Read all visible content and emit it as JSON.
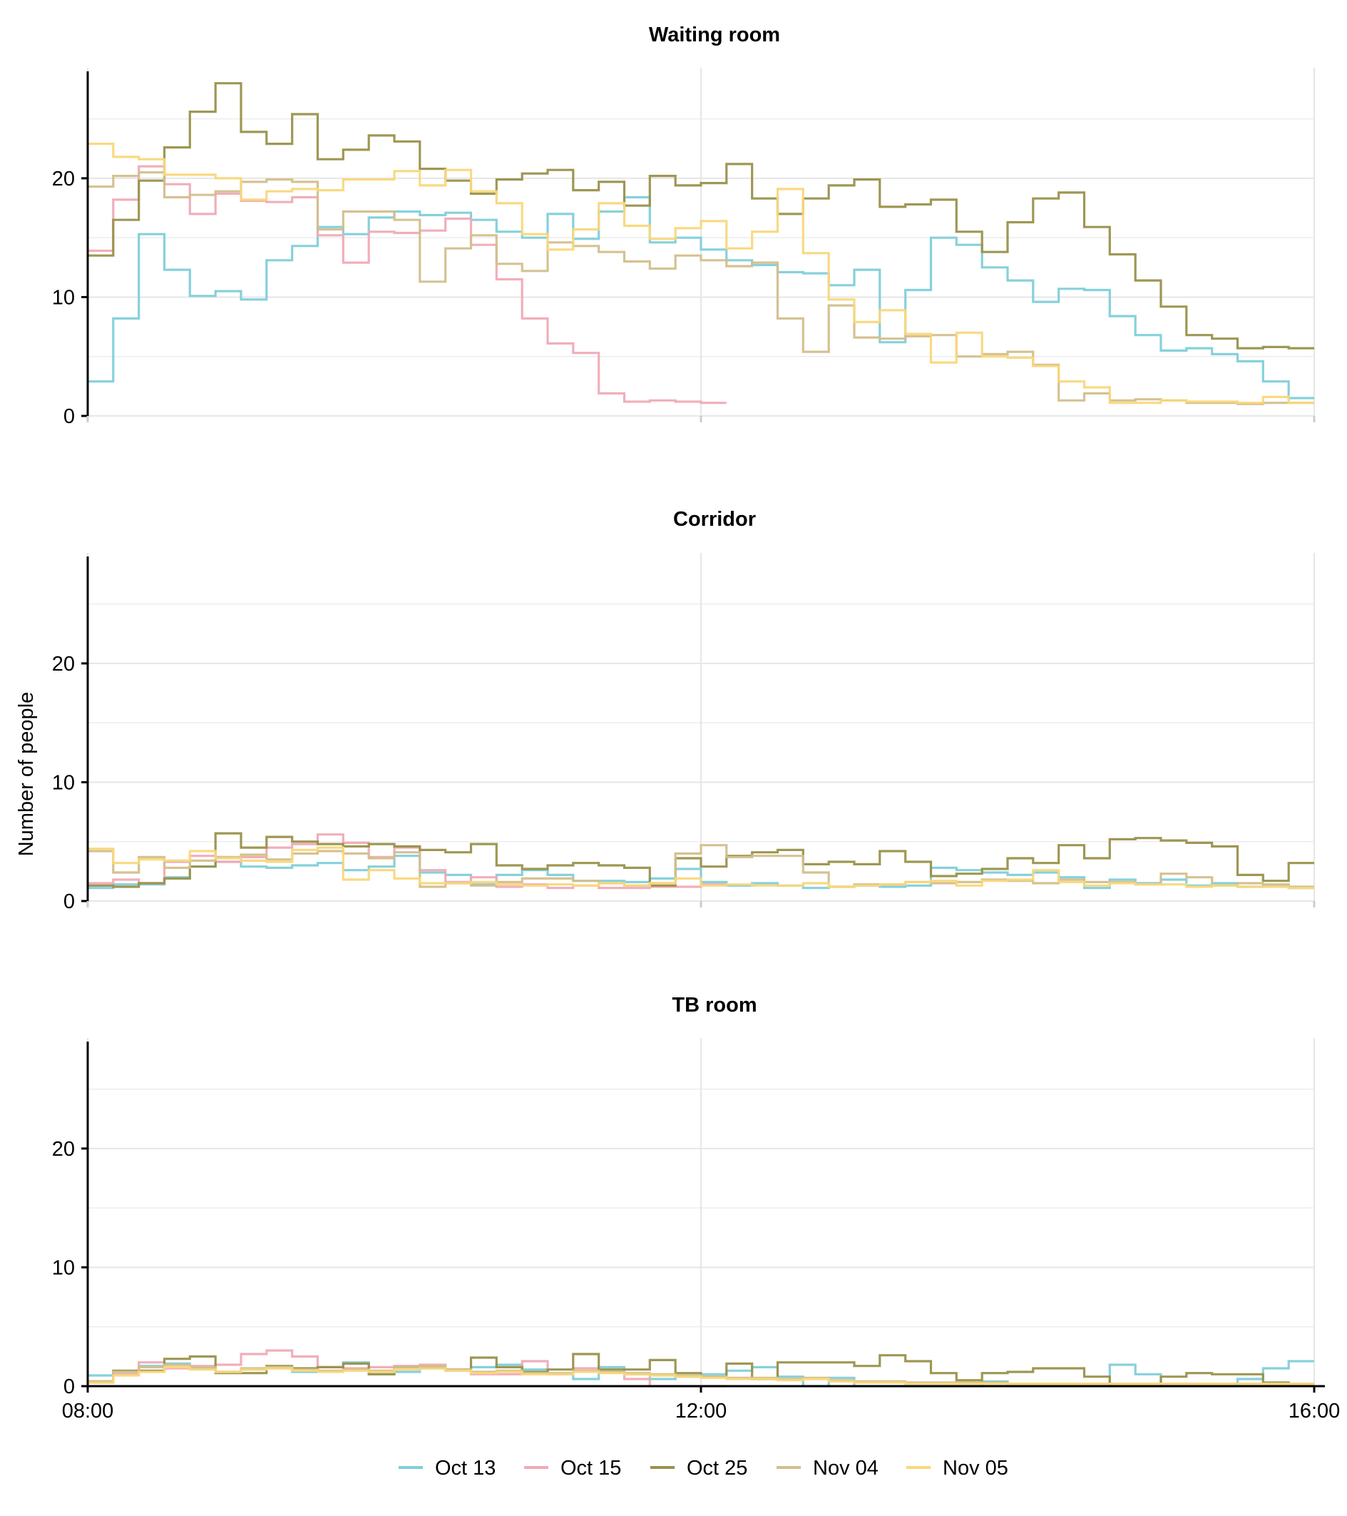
{
  "chart_data": {
    "type": "line",
    "step": true,
    "ylabel": "Number of people",
    "ylim": [
      0,
      29
    ],
    "yticks": [
      0,
      10,
      20
    ],
    "xticks": [
      "08:00",
      "12:00",
      "16:00"
    ],
    "xlim": [
      "08:00",
      "16:00"
    ],
    "x_step_minutes": 10,
    "grid": true,
    "legend": {
      "position": "bottom",
      "entries": [
        "Oct 13",
        "Oct 15",
        "Oct 25",
        "Nov 04",
        "Nov 05"
      ]
    },
    "colors": {
      "Oct 13": "#7fcfd9",
      "Oct 15": "#f0aab6",
      "Oct 25": "#99914a",
      "Nov 04": "#d3bf8c",
      "Nov 05": "#f9d77a"
    },
    "panels": [
      {
        "title": "Waiting room",
        "series": [
          {
            "name": "Oct 13",
            "values": [
              2.9,
              8.2,
              15.3,
              12.3,
              10.1,
              10.5,
              9.8,
              13.1,
              14.3,
              15.9,
              15.3,
              16.7,
              17.2,
              16.9,
              17.1,
              16.5,
              15.5,
              15.0,
              17.0,
              14.9,
              17.2,
              18.4,
              14.6,
              15.0,
              14.0,
              13.1,
              12.7,
              12.1,
              12.0,
              11.0,
              12.3,
              6.2,
              10.6,
              15.0,
              14.4,
              12.5,
              11.4,
              9.6,
              10.7,
              10.6,
              8.4,
              6.8,
              5.5,
              5.7,
              5.2,
              4.6,
              2.9,
              1.5
            ]
          },
          {
            "name": "Oct 15",
            "values": [
              13.9,
              18.2,
              21.0,
              19.5,
              17.0,
              18.7,
              18.1,
              18.0,
              18.4,
              15.2,
              12.9,
              15.5,
              15.4,
              15.6,
              16.6,
              14.4,
              11.5,
              8.2,
              6.1,
              5.3,
              1.9,
              1.2,
              1.3,
              1.2,
              1.1
            ]
          },
          {
            "name": "Oct 25",
            "values": [
              13.5,
              16.5,
              19.8,
              22.6,
              25.6,
              28.0,
              23.9,
              22.9,
              25.4,
              21.6,
              22.4,
              23.6,
              23.1,
              20.8,
              19.8,
              18.7,
              19.9,
              20.4,
              20.7,
              19.0,
              19.7,
              17.7,
              20.2,
              19.4,
              19.6,
              21.2,
              18.3,
              17.0,
              18.3,
              19.4,
              19.9,
              17.6,
              17.8,
              18.2,
              15.5,
              13.8,
              16.3,
              18.3,
              18.8,
              15.9,
              13.6,
              11.4,
              9.2,
              6.8,
              6.5,
              5.7,
              5.8,
              5.7
            ]
          },
          {
            "name": "Nov 04",
            "values": [
              19.3,
              20.2,
              20.5,
              18.4,
              18.6,
              18.9,
              19.7,
              19.9,
              19.7,
              15.7,
              17.2,
              17.2,
              16.5,
              11.3,
              14.1,
              15.2,
              12.8,
              12.2,
              14.6,
              14.3,
              13.8,
              13.0,
              12.4,
              13.5,
              13.1,
              12.6,
              12.9,
              8.2,
              5.4,
              9.3,
              6.6,
              6.5,
              6.7,
              6.8,
              5.0,
              5.2,
              5.4,
              4.3,
              1.3,
              1.9,
              1.3,
              1.4,
              1.3,
              1.1,
              1.1,
              1.0,
              1.1,
              1.1
            ]
          },
          {
            "name": "Nov 05",
            "values": [
              22.9,
              21.8,
              21.6,
              20.3,
              20.3,
              20.0,
              18.2,
              18.9,
              19.1,
              19.0,
              19.9,
              19.9,
              20.6,
              19.4,
              20.7,
              18.9,
              17.9,
              15.3,
              14.0,
              15.7,
              17.9,
              16.0,
              14.9,
              15.8,
              16.4,
              14.1,
              15.5,
              19.1,
              13.7,
              9.8,
              7.9,
              8.9,
              6.9,
              4.5,
              7.0,
              5.0,
              4.9,
              4.2,
              2.9,
              2.4,
              1.1,
              1.1,
              1.3,
              1.2,
              1.2,
              1.1,
              1.6,
              1.1
            ]
          }
        ]
      },
      {
        "title": "Corridor",
        "series": [
          {
            "name": "Oct 13",
            "values": [
              1.1,
              1.4,
              1.4,
              2.0,
              2.9,
              3.3,
              2.9,
              2.8,
              3.0,
              3.2,
              2.6,
              2.9,
              3.8,
              2.4,
              2.2,
              1.4,
              2.2,
              2.6,
              2.2,
              1.7,
              1.7,
              1.6,
              1.9,
              2.7,
              1.6,
              1.3,
              1.5,
              1.3,
              1.1,
              1.2,
              1.3,
              1.2,
              1.3,
              2.8,
              2.6,
              2.4,
              2.2,
              2.4,
              2.0,
              1.1,
              1.8,
              1.5,
              1.8,
              1.3,
              1.5,
              1.2,
              1.3,
              1.1
            ]
          },
          {
            "name": "Oct 15",
            "values": [
              1.5,
              1.8,
              1.5,
              3.3,
              3.8,
              3.3,
              3.7,
              4.5,
              4.8,
              5.6,
              4.9,
              3.7,
              4.5,
              2.6,
              1.6,
              2.0,
              1.2,
              1.4,
              1.1,
              1.3,
              1.1,
              1.1,
              1.2,
              1.2,
              1.4
            ]
          },
          {
            "name": "Oct 25",
            "values": [
              1.3,
              1.2,
              1.5,
              1.9,
              2.9,
              5.7,
              4.5,
              5.4,
              5.0,
              4.8,
              4.6,
              4.8,
              4.6,
              4.3,
              4.1,
              4.8,
              3.0,
              2.7,
              3.0,
              3.2,
              3.0,
              2.8,
              1.3,
              3.6,
              2.9,
              3.8,
              4.1,
              4.3,
              3.1,
              3.3,
              3.1,
              4.2,
              3.3,
              2.1,
              2.3,
              2.7,
              3.6,
              3.2,
              4.7,
              3.6,
              5.2,
              5.3,
              5.1,
              4.9,
              4.6,
              2.2,
              1.7,
              3.2
            ]
          },
          {
            "name": "Nov 04",
            "values": [
              4.2,
              2.4,
              3.7,
              2.8,
              3.4,
              3.7,
              3.9,
              3.5,
              4.0,
              4.2,
              4.0,
              3.6,
              4.1,
              1.2,
              1.5,
              1.3,
              1.6,
              1.9,
              1.9,
              1.7,
              1.5,
              1.3,
              1.5,
              4.0,
              4.7,
              3.7,
              3.8,
              3.8,
              2.4,
              1.2,
              1.4,
              1.4,
              1.6,
              1.5,
              1.6,
              1.8,
              1.7,
              1.5,
              1.8,
              1.6,
              1.6,
              1.4,
              2.3,
              2.0,
              1.3,
              1.5,
              1.4,
              1.2
            ]
          },
          {
            "name": "Nov 05",
            "values": [
              4.4,
              3.2,
              3.5,
              3.4,
              4.2,
              3.6,
              3.4,
              3.3,
              4.3,
              4.5,
              1.8,
              2.6,
              1.9,
              1.5,
              1.5,
              1.6,
              1.4,
              1.3,
              1.4,
              1.3,
              1.5,
              1.3,
              1.5,
              1.9,
              1.3,
              1.4,
              1.3,
              1.3,
              1.5,
              1.2,
              1.3,
              1.4,
              1.6,
              1.7,
              1.3,
              1.7,
              1.8,
              2.6,
              1.6,
              1.3,
              1.5,
              1.4,
              1.4,
              1.2,
              1.3,
              1.2,
              1.2,
              1.1
            ]
          }
        ]
      },
      {
        "title": "TB room",
        "series": [
          {
            "name": "Oct 13",
            "values": [
              0.9,
              1.2,
              1.7,
              1.9,
              1.5,
              1.2,
              1.4,
              1.5,
              1.2,
              1.6,
              2.0,
              1.0,
              1.2,
              1.5,
              1.4,
              1.6,
              1.8,
              1.4,
              1.0,
              0.6,
              1.6,
              1.0,
              0.6,
              0.8,
              1.0,
              1.3,
              1.6,
              0.8,
              0.0,
              0.7,
              0.0,
              0.0,
              0.0,
              0.0,
              0.0,
              0.4,
              0.0,
              0.0,
              0.0,
              0.0,
              1.8,
              1.0,
              0.0,
              0.0,
              0.0,
              0.6,
              1.5,
              2.1
            ]
          },
          {
            "name": "Oct 15",
            "values": [
              0.3,
              1.0,
              2.0,
              1.5,
              1.7,
              1.8,
              2.7,
              3.0,
              2.5,
              1.6,
              1.5,
              1.6,
              1.7,
              1.8,
              1.3,
              1.0,
              1.0,
              2.1,
              1.0,
              1.5,
              1.2,
              0.6,
              0.0,
              0.0,
              0.0
            ]
          },
          {
            "name": "Oct 25",
            "values": [
              0.4,
              1.3,
              1.3,
              2.3,
              2.5,
              1.1,
              1.1,
              1.7,
              1.5,
              1.6,
              1.9,
              1.0,
              1.6,
              1.6,
              1.4,
              2.4,
              1.6,
              1.2,
              1.4,
              2.7,
              1.4,
              1.4,
              2.2,
              1.1,
              0.8,
              1.9,
              0.6,
              2.0,
              2.0,
              2.0,
              1.7,
              2.6,
              2.1,
              1.1,
              0.5,
              1.1,
              1.2,
              1.5,
              1.5,
              0.8,
              0.0,
              0.0,
              0.8,
              1.1,
              1.0,
              1.0,
              0.3,
              0.2
            ]
          },
          {
            "name": "Nov 04",
            "values": [
              0.4,
              1.2,
              1.6,
              1.8,
              1.6,
              1.2,
              1.5,
              1.6,
              1.4,
              1.3,
              1.4,
              1.3,
              1.6,
              1.7,
              1.4,
              1.2,
              1.3,
              1.1,
              1.1,
              1.3,
              1.2,
              1.1,
              1.0,
              0.9,
              0.8,
              0.7,
              0.7,
              0.6,
              0.7,
              0.5,
              0.4,
              0.4,
              0.3,
              0.3,
              0.3,
              0.3,
              0.2,
              0.2,
              0.2,
              0.2,
              0.2,
              0.2,
              0.2,
              0.2,
              0.2,
              0.2,
              0.2,
              0.2
            ]
          },
          {
            "name": "Nov 05",
            "values": [
              0.3,
              0.9,
              1.2,
              1.6,
              1.4,
              1.2,
              1.4,
              1.5,
              1.3,
              1.2,
              1.3,
              1.2,
              1.4,
              1.5,
              1.3,
              1.1,
              1.2,
              1.0,
              1.0,
              1.2,
              1.1,
              1.0,
              0.9,
              0.8,
              0.7,
              0.6,
              0.6,
              0.5,
              0.6,
              0.4,
              0.3,
              0.3,
              0.2,
              0.2,
              0.2,
              0.2,
              0.2,
              0.2,
              0.2,
              0.2,
              0.2,
              0.2,
              0.2,
              0.2,
              0.2,
              0.2,
              0.2,
              0.2
            ]
          }
        ]
      }
    ]
  }
}
